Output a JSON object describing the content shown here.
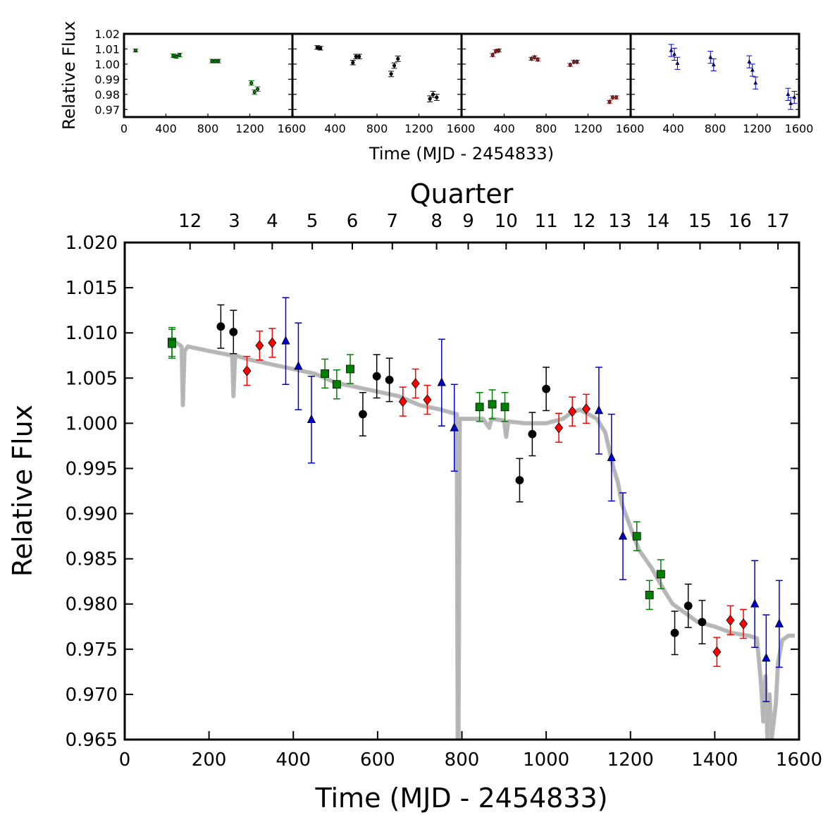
{
  "chart_data": [
    {
      "id": "inset",
      "type": "scatter",
      "panels": 4,
      "xlabel": "Time (MJD - 2454833)",
      "ylabel": "Relative Flux",
      "xlim": [
        0,
        1600
      ],
      "ylim": [
        0.965,
        1.02
      ],
      "xticks": [
        "0",
        "400",
        "800",
        "1200",
        "1600"
      ],
      "yticks": [
        "0.97",
        "0.98",
        "0.99",
        "1.00",
        "1.01",
        "1.02"
      ],
      "panel_series": [
        {
          "color": "#008000",
          "marker": "circle",
          "x": [
            110,
            470,
            500,
            530,
            840,
            870,
            900,
            1215,
            1245,
            1275
          ],
          "y": [
            1.009,
            1.0055,
            1.005,
            1.006,
            1.002,
            1.002,
            1.002,
            0.9875,
            0.9815,
            0.9835
          ],
          "err": [
            0.001,
            0.0012,
            0.0012,
            0.0012,
            0.0012,
            0.0012,
            0.0012,
            0.0015,
            0.0015,
            0.0015
          ]
        },
        {
          "color": "#000000",
          "marker": "circle",
          "x": [
            230,
            260,
            570,
            600,
            630,
            935,
            965,
            1000,
            1305,
            1335,
            1370
          ],
          "y": [
            1.011,
            1.0105,
            1.001,
            1.005,
            1.005,
            0.9935,
            0.999,
            1.0035,
            0.977,
            0.98,
            0.978
          ],
          "err": [
            0.0012,
            0.0012,
            0.0015,
            0.0015,
            0.0015,
            0.0018,
            0.0018,
            0.0018,
            0.002,
            0.002,
            0.002
          ]
        },
        {
          "color": "#b22222",
          "marker": "diamond",
          "x": [
            290,
            320,
            350,
            660,
            690,
            720,
            1030,
            1065,
            1095,
            1405,
            1435,
            1470
          ],
          "y": [
            1.006,
            1.0085,
            1.009,
            1.0035,
            1.0045,
            1.003,
            0.9995,
            1.0015,
            1.0015,
            0.975,
            0.978,
            0.978
          ],
          "err": [
            0.001,
            0.001,
            0.001,
            0.001,
            0.001,
            0.001,
            0.001,
            0.001,
            0.001,
            0.001,
            0.001,
            0.001
          ]
        },
        {
          "color": "#0000cd",
          "marker": "triangle",
          "x": [
            380,
            410,
            440,
            755,
            785,
            1125,
            1155,
            1185,
            1495,
            1520,
            1555
          ],
          "y": [
            1.009,
            1.0065,
            1.0005,
            1.0045,
            0.9995,
            1.0015,
            0.996,
            0.9875,
            0.98,
            0.974,
            0.978
          ],
          "err": [
            0.004,
            0.004,
            0.004,
            0.004,
            0.004,
            0.004,
            0.004,
            0.004,
            0.004,
            0.004,
            0.004
          ]
        }
      ]
    },
    {
      "id": "main",
      "type": "scatter",
      "xlabel": "Time (MJD - 2454833)",
      "ylabel": "Relative Flux",
      "top_axis_label": "Quarter",
      "xlim": [
        0,
        1600
      ],
      "ylim": [
        0.965,
        1.02
      ],
      "xticks": [
        "0",
        "200",
        "400",
        "600",
        "800",
        "1000",
        "1200",
        "1400",
        "1600"
      ],
      "yticks": [
        "0.965",
        "0.970",
        "0.975",
        "0.980",
        "0.985",
        "0.990",
        "0.995",
        "1.000",
        "1.005",
        "1.010",
        "1.015",
        "1.020"
      ],
      "quarters": [
        {
          "label": "12",
          "x": 155
        },
        {
          "label": "3",
          "x": 260
        },
        {
          "label": "4",
          "x": 350
        },
        {
          "label": "5",
          "x": 445
        },
        {
          "label": "6",
          "x": 540
        },
        {
          "label": "7",
          "x": 635
        },
        {
          "label": "8",
          "x": 740
        },
        {
          "label": "9",
          "x": 815
        },
        {
          "label": "10",
          "x": 905
        },
        {
          "label": "11",
          "x": 1000
        },
        {
          "label": "12",
          "x": 1090
        },
        {
          "label": "13",
          "x": 1175
        },
        {
          "label": "14",
          "x": 1265
        },
        {
          "label": "15",
          "x": 1365
        },
        {
          "label": "16",
          "x": 1460
        },
        {
          "label": "17",
          "x": 1550
        }
      ],
      "lightcurve": {
        "color": "#b3b3b3",
        "x": [
          120,
          135,
          138,
          142,
          150,
          200,
          255,
          258,
          262,
          300,
          350,
          400,
          450,
          500,
          550,
          600,
          650,
          700,
          750,
          788,
          790,
          792,
          795,
          800,
          850,
          865,
          870,
          900,
          905,
          910,
          950,
          1000,
          1040,
          1060,
          1080,
          1100,
          1120,
          1140,
          1150,
          1160,
          1170,
          1180,
          1200,
          1220,
          1250,
          1280,
          1300,
          1330,
          1360,
          1400,
          1440,
          1480,
          1500,
          1510,
          1515,
          1520,
          1525,
          1530,
          1535,
          1545,
          1550,
          1560,
          1575,
          1590
        ],
        "y": [
          1.009,
          1.0085,
          1.002,
          1.008,
          1.0085,
          1.008,
          1.0075,
          1.003,
          1.0075,
          1.007,
          1.0065,
          1.006,
          1.0055,
          1.0045,
          1.004,
          1.0035,
          1.003,
          1.002,
          1.0015,
          1.001,
          0.965,
          0.965,
          1.0005,
          1.0005,
          1.0005,
          0.9995,
          1.0005,
          1.0003,
          0.9985,
          1.0002,
          1.0,
          1.0,
          1.0005,
          1.0012,
          1.0015,
          1.001,
          1.0005,
          0.999,
          0.997,
          0.995,
          0.9935,
          0.991,
          0.9885,
          0.986,
          0.984,
          0.9815,
          0.98,
          0.979,
          0.978,
          0.9775,
          0.9768,
          0.9765,
          0.9762,
          0.971,
          0.967,
          0.972,
          0.965,
          0.97,
          0.965,
          0.969,
          0.9735,
          0.976,
          0.9765,
          0.9765
        ]
      },
      "series": [
        {
          "color": "#008000",
          "marker": "square",
          "x": [
            112,
            112,
            475,
            503,
            535,
            842,
            872,
            902,
            1215,
            1245,
            1272
          ],
          "y": [
            1.009,
            1.0088,
            1.0055,
            1.0043,
            1.006,
            1.0018,
            1.0021,
            1.0018,
            0.9875,
            0.981,
            0.9833
          ],
          "err": [
            0.0016,
            0.0016,
            0.0016,
            0.0016,
            0.0016,
            0.0016,
            0.0016,
            0.0016,
            0.0016,
            0.0016,
            0.0016
          ]
        },
        {
          "color": "#000000",
          "marker": "circle",
          "x": [
            228,
            258,
            565,
            598,
            628,
            937,
            967,
            1000,
            1305,
            1337,
            1370
          ],
          "y": [
            1.0107,
            1.0101,
            1.001,
            1.0052,
            1.0048,
            0.9937,
            0.9988,
            1.0038,
            0.9768,
            0.9798,
            0.978
          ],
          "err": [
            0.0024,
            0.0024,
            0.0024,
            0.0024,
            0.0024,
            0.0024,
            0.0024,
            0.0024,
            0.0024,
            0.0024,
            0.0024
          ]
        },
        {
          "color": "#ff0000",
          "marker": "diamond",
          "x": [
            290,
            320,
            350,
            660,
            690,
            718,
            1030,
            1062,
            1095,
            1405,
            1437,
            1468
          ],
          "y": [
            1.0058,
            1.0086,
            1.0089,
            1.0024,
            1.0044,
            1.0026,
            0.9995,
            1.0013,
            1.0016,
            0.9747,
            0.9782,
            0.9778
          ],
          "err": [
            0.0016,
            0.0016,
            0.0016,
            0.0016,
            0.0016,
            0.0016,
            0.0016,
            0.0016,
            0.0016,
            0.0016,
            0.0016,
            0.0016
          ]
        },
        {
          "color": "#0000cc",
          "marker": "triangle",
          "x": [
            382,
            412,
            443,
            752,
            782,
            1125,
            1155,
            1182,
            1495,
            1522,
            1553
          ],
          "y": [
            1.0091,
            1.0063,
            1.0004,
            1.0045,
            0.9995,
            1.0014,
            0.9962,
            0.9875,
            0.98,
            0.974,
            0.9778
          ],
          "err": [
            0.0048,
            0.0048,
            0.0048,
            0.0048,
            0.0048,
            0.0048,
            0.0048,
            0.0048,
            0.0048,
            0.0048,
            0.0048
          ]
        }
      ]
    }
  ]
}
